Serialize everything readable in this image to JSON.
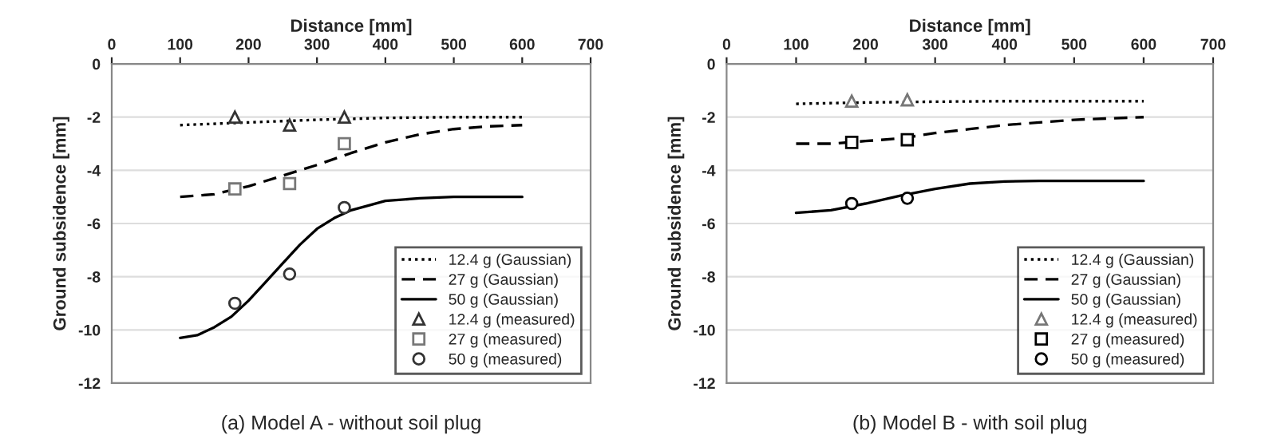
{
  "chart_data": [
    {
      "type": "line",
      "xlabel": "Distance [mm]",
      "ylabel": "Ground subsidence [mm]",
      "xlim": [
        0,
        700
      ],
      "xticks": [
        0,
        100,
        200,
        300,
        400,
        500,
        600,
        700
      ],
      "ylim": [
        -12,
        0
      ],
      "yticks": [
        -12,
        -10,
        -8,
        -6,
        -4,
        -2,
        0
      ],
      "grid": "y",
      "legend": "bottom right",
      "annotations": [
        "(a) Model A - without soil plug"
      ],
      "series": [
        {
          "name": "12.4 g (Gaussian)",
          "type": "line",
          "line_style": "dotted",
          "marker": "none",
          "color": "#000000",
          "x": [
            100,
            200,
            300,
            400,
            500,
            600
          ],
          "values": [
            -2.3,
            -2.2,
            -2.1,
            -2.03,
            -2.0,
            -2.0
          ]
        },
        {
          "name": "27 g (Gaussian)",
          "type": "line",
          "line_style": "dashed",
          "marker": "none",
          "color": "#000000",
          "x": [
            100,
            150,
            200,
            250,
            300,
            350,
            400,
            450,
            500,
            550,
            600
          ],
          "values": [
            -5.0,
            -4.9,
            -4.6,
            -4.2,
            -3.8,
            -3.35,
            -2.95,
            -2.65,
            -2.45,
            -2.35,
            -2.3
          ]
        },
        {
          "name": "50 g (Gaussian)",
          "type": "line",
          "line_style": "solid",
          "marker": "none",
          "color": "#000000",
          "x": [
            100,
            125,
            150,
            175,
            200,
            225,
            250,
            275,
            300,
            325,
            350,
            400,
            450,
            500,
            600
          ],
          "values": [
            -10.3,
            -10.2,
            -9.9,
            -9.5,
            -8.9,
            -8.2,
            -7.5,
            -6.8,
            -6.2,
            -5.8,
            -5.5,
            -5.15,
            -5.05,
            -5.0,
            -5.0
          ]
        },
        {
          "name": "12.4 g (measured)",
          "type": "scatter",
          "marker": "triangle",
          "color": "#333333",
          "x": [
            180,
            260,
            340
          ],
          "values": [
            -2.0,
            -2.3,
            -2.0
          ]
        },
        {
          "name": "27 g (measured)",
          "type": "scatter",
          "marker": "square",
          "color": "#777777",
          "x": [
            180,
            260,
            340
          ],
          "values": [
            -4.7,
            -4.5,
            -3.0
          ]
        },
        {
          "name": "50 g (measured)",
          "type": "scatter",
          "marker": "circle",
          "color": "#333333",
          "x": [
            180,
            260,
            340
          ],
          "values": [
            -9.0,
            -7.9,
            -5.4
          ]
        }
      ]
    },
    {
      "type": "line",
      "xlabel": "Distance [mm]",
      "ylabel": "Ground subsidence [mm]",
      "xlim": [
        0,
        700
      ],
      "xticks": [
        0,
        100,
        200,
        300,
        400,
        500,
        600,
        700
      ],
      "ylim": [
        -12,
        0
      ],
      "yticks": [
        -12,
        -10,
        -8,
        -6,
        -4,
        -2,
        0
      ],
      "grid": "y",
      "legend": "bottom right",
      "annotations": [
        "(b) Model B - with soil plug"
      ],
      "series": [
        {
          "name": "12.4 g (Gaussian)",
          "type": "line",
          "line_style": "dotted",
          "marker": "none",
          "color": "#000000",
          "x": [
            100,
            200,
            300,
            400,
            600
          ],
          "values": [
            -1.5,
            -1.45,
            -1.42,
            -1.4,
            -1.4
          ]
        },
        {
          "name": "27 g (Gaussian)",
          "type": "line",
          "line_style": "dashed",
          "marker": "none",
          "color": "#000000",
          "x": [
            100,
            150,
            200,
            250,
            300,
            350,
            400,
            450,
            500,
            600
          ],
          "values": [
            -3.0,
            -3.0,
            -2.9,
            -2.8,
            -2.6,
            -2.45,
            -2.3,
            -2.2,
            -2.1,
            -2.0
          ]
        },
        {
          "name": "50 g (Gaussian)",
          "type": "line",
          "line_style": "solid",
          "marker": "none",
          "color": "#000000",
          "x": [
            100,
            150,
            200,
            250,
            300,
            350,
            400,
            450,
            600
          ],
          "values": [
            -5.6,
            -5.5,
            -5.25,
            -4.95,
            -4.7,
            -4.5,
            -4.42,
            -4.4,
            -4.4
          ]
        },
        {
          "name": "12.4 g (measured)",
          "type": "scatter",
          "marker": "triangle",
          "color": "#777777",
          "x": [
            180,
            260
          ],
          "values": [
            -1.4,
            -1.35
          ]
        },
        {
          "name": "27 g (measured)",
          "type": "scatter",
          "marker": "square",
          "color": "#000000",
          "x": [
            180,
            260
          ],
          "values": [
            -2.95,
            -2.85
          ]
        },
        {
          "name": "50 g (measured)",
          "type": "scatter",
          "marker": "circle",
          "color": "#000000",
          "x": [
            180,
            260
          ],
          "values": [
            -5.25,
            -5.05
          ]
        }
      ]
    }
  ]
}
